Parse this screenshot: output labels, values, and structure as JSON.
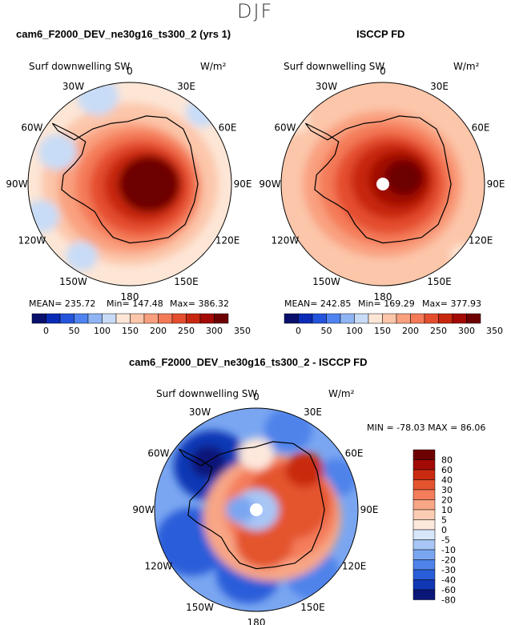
{
  "figure": {
    "title": "DJF"
  },
  "chart_data": [
    {
      "type": "heatmap",
      "projection": "south-polar-stereographic",
      "title": "cam6_F2000_DEV_ne30g16_ts300_2 (yrs 1)",
      "variable": "Surf downwelling SW",
      "units": "W/m²",
      "longitude_labels": [
        "0",
        "30E",
        "60E",
        "90E",
        "120E",
        "150E",
        "180",
        "150W",
        "120W",
        "90W",
        "60W",
        "30W"
      ],
      "mean_label": "MEAN= 235.72",
      "min_label": "Min= 147.48",
      "max_label": "Max= 386.32",
      "stats": {
        "mean": 235.72,
        "min": 147.48,
        "max": 386.32
      },
      "colorbar_levels": [
        "0",
        "50",
        "100",
        "150",
        "200",
        "250",
        "300",
        "350"
      ]
    },
    {
      "type": "heatmap",
      "projection": "south-polar-stereographic",
      "title": "ISCCP FD",
      "variable": "Surf downwelling SW",
      "units": "W/m²",
      "longitude_labels": [
        "0",
        "30E",
        "60E",
        "90E",
        "120E",
        "150E",
        "180",
        "150W",
        "120W",
        "90W",
        "60W",
        "30W"
      ],
      "mean_label": "MEAN= 242.85",
      "min_label": "Min= 169.29",
      "max_label": "Max= 377.93",
      "stats": {
        "mean": 242.85,
        "min": 169.29,
        "max": 377.93
      },
      "colorbar_levels": [
        "0",
        "50",
        "100",
        "150",
        "200",
        "250",
        "300",
        "350"
      ]
    },
    {
      "type": "heatmap",
      "projection": "south-polar-stereographic",
      "title": "cam6_F2000_DEV_ne30g16_ts300_2 - ISCCP FD",
      "variable": "Surf downwelling SW",
      "units": "W/m²",
      "longitude_labels": [
        "0",
        "30E",
        "60E",
        "90E",
        "120E",
        "150E",
        "180",
        "150W",
        "120W",
        "90W",
        "60W",
        "30W"
      ],
      "minmax_label": "MIN = -78.03  MAX =  86.06",
      "stats": {
        "min": -78.03,
        "max": 86.06
      },
      "colorbar_levels": [
        "80",
        "60",
        "40",
        "30",
        "20",
        "10",
        "5",
        "0",
        "-5",
        "-10",
        "-20",
        "-30",
        "-40",
        "-60",
        "-80"
      ]
    }
  ],
  "colors": {
    "abs": [
      "#08106b",
      "#0a2bb5",
      "#2454dc",
      "#4f84f0",
      "#8fb4f4",
      "#c8dcf7",
      "#fde6d6",
      "#fcc6aa",
      "#f9a07f",
      "#f47a58",
      "#e44e2e",
      "#c7270f",
      "#a30a05",
      "#6d0000"
    ],
    "diff": [
      "#6d0000",
      "#a30a05",
      "#c92a10",
      "#e4542f",
      "#f47d5b",
      "#f8a685",
      "#fbccb3",
      "#fde8dc",
      "#d8e6fa",
      "#a7c6f6",
      "#7aa6f1",
      "#4f83ea",
      "#2a5dd9",
      "#1137b5",
      "#0a1678"
    ]
  }
}
